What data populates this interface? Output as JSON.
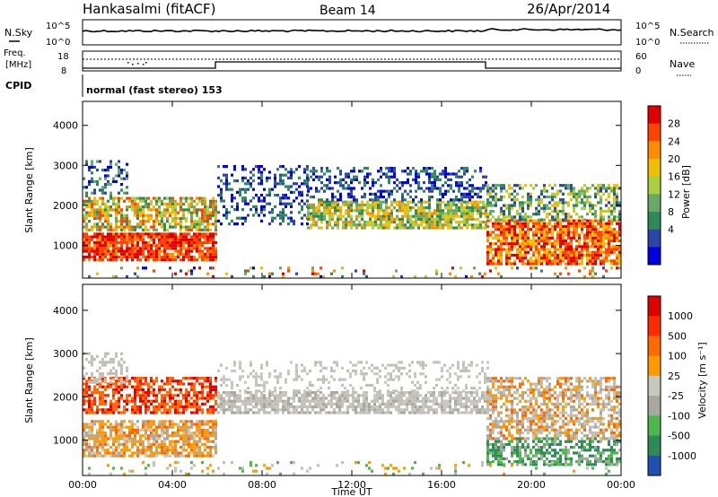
{
  "header": {
    "station": "Hankasalmi (fitACF)",
    "beam": "Beam 14",
    "date": "26/Apr/2014"
  },
  "sky_panel": {
    "left_label": "N.Sky",
    "right_label": "N.Search",
    "left_ticks": [
      "10^5",
      "10^0"
    ],
    "right_ticks": [
      "10^5",
      "10^0"
    ]
  },
  "freq_panel": {
    "left_label_1": "Freq.",
    "left_label_2": "[MHz]",
    "right_label": "Nave",
    "left_ticks": [
      "18",
      "8"
    ],
    "right_ticks": [
      "60",
      "0"
    ],
    "cpid_label": "CPID",
    "mode_text": "normal (fast stereo) 153"
  },
  "colors": {
    "power_scale": [
      "#0000e0",
      "#2a46a8",
      "#2e8b57",
      "#66aa66",
      "#a8d040",
      "#f0c000",
      "#ff8c00",
      "#ff4400",
      "#e00000"
    ],
    "velocity_scale": [
      "#2050b0",
      "#2e8b57",
      "#4cb84c",
      "#a8a8a0",
      "#c8c8c0",
      "#ff9a00",
      "#ff6a00",
      "#ff2a00",
      "#e00000"
    ],
    "ground_scatter": "#c0c0b8"
  },
  "chart_data": [
    {
      "type": "heatmap",
      "name": "power",
      "ylabel": "Slant Range [km]",
      "ylim": [
        180,
        4600
      ],
      "y_ticks": [
        "1000",
        "2000",
        "3000",
        "4000"
      ],
      "x_ticks": [
        "00:00",
        "04:00",
        "08:00",
        "12:00",
        "16:00",
        "20:00",
        "00:00"
      ],
      "colorbar_label": "Power [dB]",
      "colorbar_ticks": [
        "28",
        "24",
        "20",
        "16",
        "12",
        "8",
        "4"
      ],
      "grid": false
    },
    {
      "type": "heatmap",
      "name": "velocity",
      "ylabel": "Slant Range [km]",
      "ylim": [
        180,
        4600
      ],
      "y_ticks": [
        "1000",
        "2000",
        "3000",
        "4000"
      ],
      "x_ticks": [
        "00:00",
        "04:00",
        "08:00",
        "12:00",
        "16:00",
        "20:00",
        "00:00"
      ],
      "xlabel": "Time UT",
      "colorbar_label": "Velocity [m s⁻¹]",
      "colorbar_ticks": [
        "1000",
        "500",
        "100",
        "25",
        "-25",
        "-100",
        "-500",
        "-1000"
      ],
      "grid": false
    }
  ]
}
